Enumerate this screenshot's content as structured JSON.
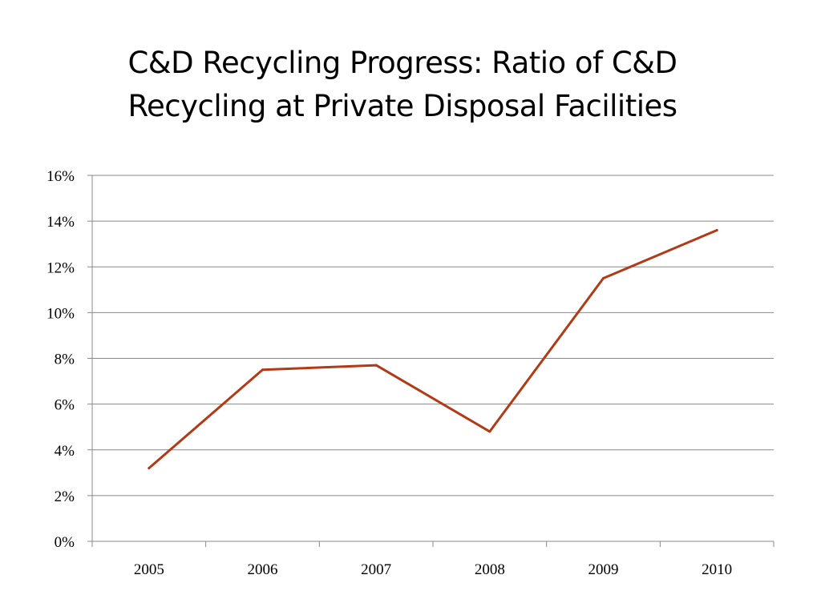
{
  "slide": {
    "title_line1": "C&D Recycling Progress: Ratio of C&D",
    "title_line2": "Recycling at Private Disposal Facilities"
  },
  "chart_data": {
    "type": "line",
    "title": "C&D Recycling Progress: Ratio of C&D Recycling at Private Disposal Facilities",
    "categories": [
      "2005",
      "2006",
      "2007",
      "2008",
      "2009",
      "2010"
    ],
    "series": [
      {
        "values": [
          0.032,
          0.075,
          0.077,
          0.048,
          0.115,
          0.136
        ],
        "color": "#B23A16"
      }
    ],
    "ylim": [
      0,
      0.16
    ],
    "yticks": [
      0,
      0.02,
      0.04,
      0.06,
      0.08,
      0.1,
      0.12,
      0.14,
      0.16
    ],
    "ytick_labels": [
      "0%",
      "2%",
      "4%",
      "6%",
      "8%",
      "10%",
      "12%",
      "14%",
      "16%"
    ],
    "xlabel": "",
    "ylabel": "",
    "grid": true,
    "legend": "none",
    "colors": {
      "gridline": "#888888",
      "axis": "#888888"
    }
  }
}
